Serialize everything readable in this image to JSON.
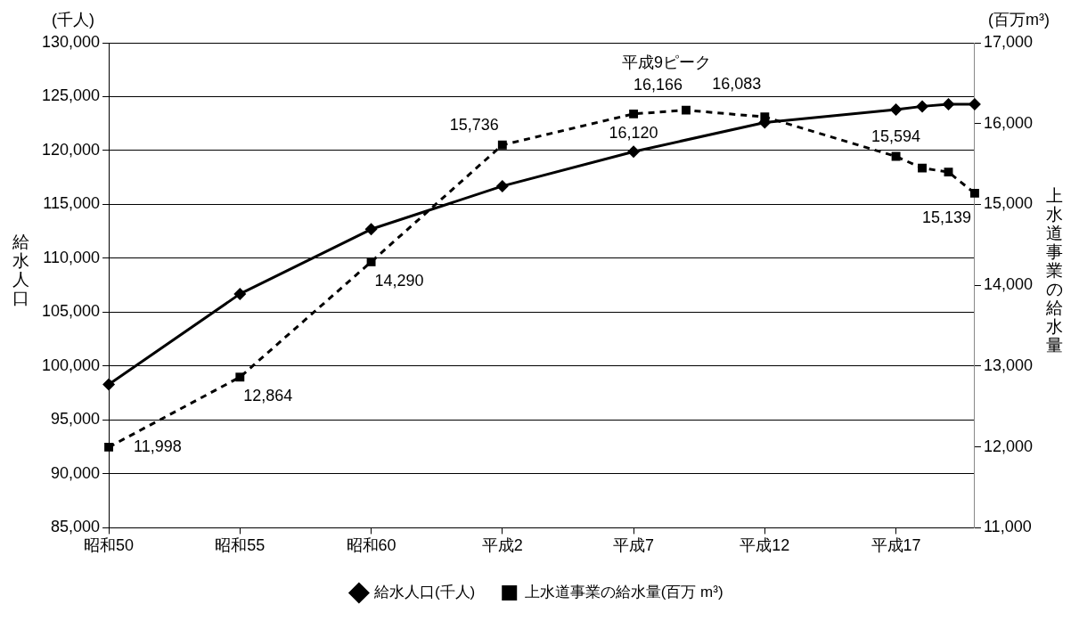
{
  "chart_data": {
    "type": "line",
    "categories": [
      "昭和50",
      null,
      null,
      null,
      null,
      "昭和55",
      null,
      null,
      null,
      null,
      "昭和60",
      null,
      null,
      null,
      null,
      "平成2",
      null,
      null,
      null,
      null,
      "平成7",
      null,
      null,
      null,
      null,
      "平成12",
      null,
      null,
      null,
      null,
      "平成17",
      null,
      null,
      null
    ],
    "ylabel": "給水人口",
    "y2label": "上水道事業の給水量",
    "ylim": [
      85000,
      130000
    ],
    "yticks": [
      {
        "value": 85000,
        "label": "85,000"
      },
      {
        "value": 90000,
        "label": "90,000"
      },
      {
        "value": 95000,
        "label": "95,000"
      },
      {
        "value": 100000,
        "label": "100,000"
      },
      {
        "value": 105000,
        "label": "105,000"
      },
      {
        "value": 110000,
        "label": "110,000"
      },
      {
        "value": 115000,
        "label": "115,000"
      },
      {
        "value": 120000,
        "label": "120,000"
      },
      {
        "value": 125000,
        "label": "125,000"
      },
      {
        "value": 130000,
        "label": "130,000"
      }
    ],
    "y2lim": [
      11000,
      17000
    ],
    "y2ticks": [
      {
        "value": 11000,
        "label": "11,000"
      },
      {
        "value": 12000,
        "label": "12,000"
      },
      {
        "value": 13000,
        "label": "13,000"
      },
      {
        "value": 14000,
        "label": "14,000"
      },
      {
        "value": 15000,
        "label": "15,000"
      },
      {
        "value": 16000,
        "label": "16,000"
      },
      {
        "value": 17000,
        "label": "17,000"
      }
    ],
    "grid": "y",
    "legend": "bottom",
    "annotations": [
      "(千人)",
      "(百万m³)",
      "平成9ピーク"
    ],
    "series": [
      {
        "name": "給水人口(千人)",
        "color": "#000000",
        "marker": "diamond",
        "line_style": "solid",
        "values": [
          98300,
          null,
          null,
          null,
          null,
          106700,
          null,
          null,
          null,
          null,
          112700,
          null,
          null,
          null,
          null,
          116700,
          null,
          null,
          null,
          null,
          119900,
          null,
          null,
          null,
          null,
          122600,
          null,
          null,
          null,
          null,
          123800,
          124100,
          124300,
          124300
        ]
      },
      {
        "name": "上水道事業の給水量(百万 m³)",
        "color": "#000000",
        "marker": "square",
        "line_style": "dashed",
        "axis": "y2",
        "values": [
          11998,
          null,
          null,
          null,
          null,
          12864,
          null,
          null,
          null,
          null,
          14290,
          null,
          null,
          null,
          null,
          15736,
          null,
          null,
          null,
          null,
          16120,
          null,
          16166,
          null,
          null,
          16083,
          null,
          null,
          null,
          null,
          15594,
          15450,
          15400,
          15139
        ],
        "value_labels": [
          "11,998",
          null,
          null,
          null,
          null,
          "12,864",
          null,
          null,
          null,
          null,
          "14,290",
          null,
          null,
          null,
          null,
          "15,736",
          null,
          null,
          null,
          null,
          "16,120",
          null,
          "16,166",
          null,
          null,
          "16,083",
          null,
          null,
          null,
          null,
          "15,594",
          null,
          null,
          "15,139"
        ]
      }
    ]
  }
}
